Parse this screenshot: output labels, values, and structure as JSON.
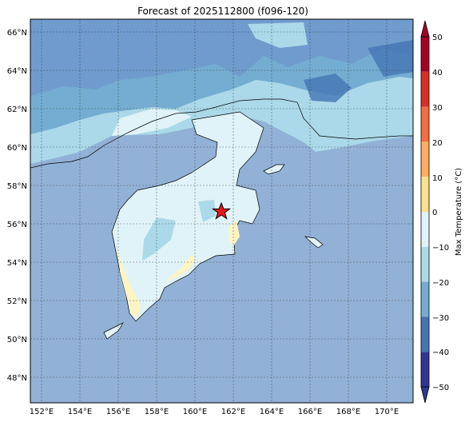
{
  "title": "Forecast of 2025112800 (f096-120)",
  "map": {
    "lon_ticks": [
      "152°E",
      "154°E",
      "156°E",
      "158°E",
      "160°E",
      "162°E",
      "164°E",
      "166°E",
      "168°E",
      "170°E"
    ],
    "lat_ticks": [
      "66°N",
      "64°N",
      "62°N",
      "60°N",
      "58°N",
      "56°N",
      "54°N",
      "52°N",
      "50°N",
      "48°N"
    ],
    "ocean_color": "#92b1d6",
    "marker": {
      "symbol": "star",
      "color": "#e31a1c",
      "lon": 161.4,
      "lat": 56.7
    }
  },
  "colorbar": {
    "label": "Max Temperature (°C)",
    "ticks": [
      "50",
      "40",
      "30",
      "20",
      "10",
      "0",
      "−10",
      "−20",
      "−30",
      "−40",
      "−50"
    ],
    "colors_top_to_bottom": [
      "#a50026",
      "#d73027",
      "#f46d43",
      "#fdae61",
      "#fee090",
      "#ffffbf",
      "#e0f3f8",
      "#abd9e9",
      "#74add1",
      "#4575b4",
      "#313695"
    ],
    "extend": "both"
  }
}
